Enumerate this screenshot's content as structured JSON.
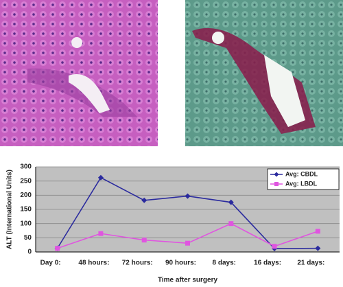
{
  "chart_data": {
    "type": "line",
    "y_label": "ALT (International Units)",
    "x_label": "Time after surgery",
    "categories": [
      "Day 0:",
      "48 hours:",
      "72 hours:",
      "90 hours:",
      "8 days:",
      "16 days:",
      "21 days:"
    ],
    "series": [
      {
        "name": "Avg: CBDL",
        "color": "#2b2b9e",
        "marker": "diamond",
        "values": [
          13,
          262,
          182,
          197,
          175,
          12,
          13
        ]
      },
      {
        "name": "Avg: LBDL",
        "color": "#e055e0",
        "marker": "square",
        "values": [
          13,
          65,
          42,
          31,
          100,
          20,
          73
        ]
      }
    ],
    "ylim": [
      0,
      300
    ],
    "yticks": [
      0,
      50,
      100,
      150,
      200,
      250,
      300
    ],
    "grid": true,
    "legend": "upper right"
  }
}
